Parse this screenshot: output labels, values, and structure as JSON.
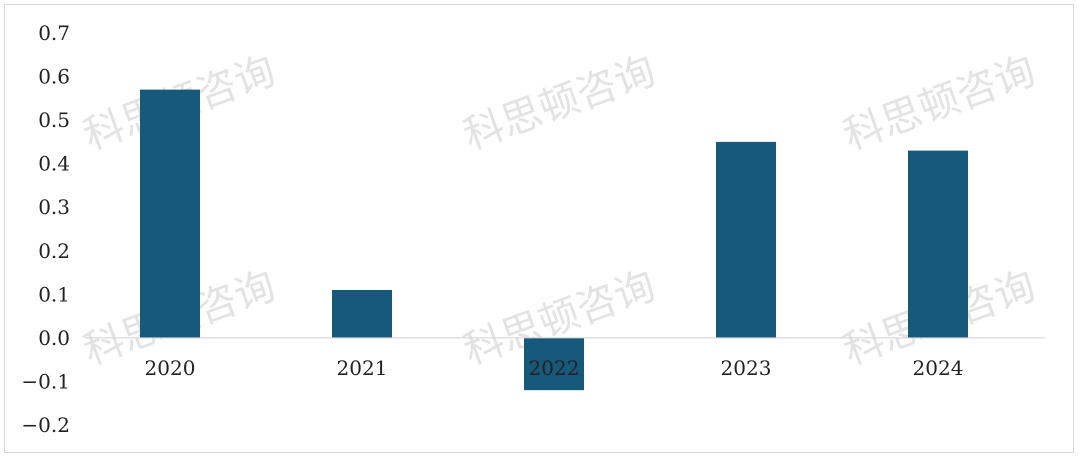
{
  "chart_data": {
    "type": "bar",
    "categories": [
      "2020",
      "2021",
      "2022",
      "2023",
      "2024"
    ],
    "values": [
      0.57,
      0.11,
      -0.12,
      0.45,
      0.43
    ],
    "title": "",
    "xlabel": "",
    "ylabel": "",
    "ylim": [
      -0.2,
      0.7
    ],
    "yticks": [
      "0.7",
      "0.6",
      "0.5",
      "0.4",
      "0.3",
      "0.2",
      "0.1",
      "0.0",
      "−0.1",
      "−0.2"
    ],
    "bar_color": "#17597a",
    "grid": false,
    "legend": "none"
  },
  "watermark": {
    "text": "科思顿咨询"
  }
}
